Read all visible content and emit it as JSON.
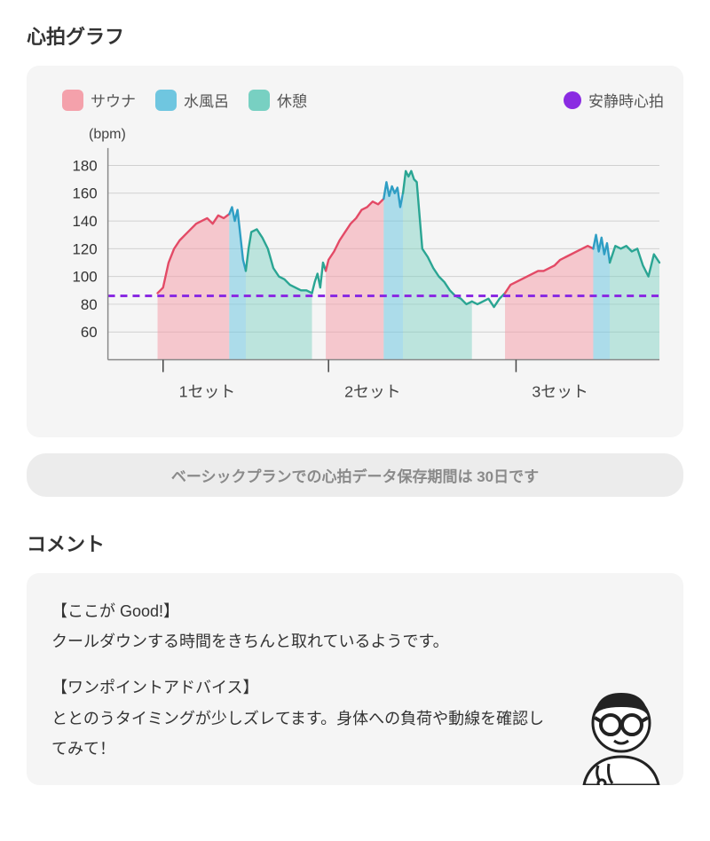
{
  "heartRate": {
    "title": "心拍グラフ",
    "legend": {
      "sauna": {
        "label": "サウナ",
        "color": "#f4a1ab"
      },
      "cold": {
        "label": "水風呂",
        "color": "#6fc6e0"
      },
      "rest": {
        "label": "休憩",
        "color": "#78d0c2"
      },
      "resting": {
        "label": "安静時心拍",
        "color": "#8a2be2"
      }
    },
    "chart": {
      "type": "line-area",
      "yAxis": {
        "label": "(bpm)",
        "min": 40,
        "max": 190,
        "ticks": [
          60,
          80,
          100,
          120,
          140,
          160,
          180
        ],
        "gridColor": "#d0d0d0",
        "labelFontSize": 17
      },
      "xAxis": {
        "min": 0,
        "max": 100,
        "setLabels": [
          "1セット",
          "2セット",
          "3セット"
        ],
        "setTickPositions": [
          10,
          40,
          74
        ],
        "labelFontSize": 18
      },
      "restingHr": 86,
      "restingLine": {
        "color": "#8a2be2",
        "dash": "8 6",
        "width": 3
      },
      "background": "#f5f5f5",
      "lineWidth": 2.4,
      "segments": [
        {
          "kind": "sauna",
          "color": "#e34a66",
          "fill": "#f4a1ab",
          "fillOpacity": 0.55,
          "points": [
            [
              9,
              88
            ],
            [
              10,
              92
            ],
            [
              11,
              110
            ],
            [
              12,
              120
            ],
            [
              13,
              126
            ],
            [
              14,
              130
            ],
            [
              15,
              134
            ],
            [
              16,
              138
            ],
            [
              17,
              140
            ],
            [
              18,
              142
            ],
            [
              19,
              138
            ],
            [
              20,
              144
            ],
            [
              21,
              142
            ],
            [
              22,
              145
            ]
          ]
        },
        {
          "kind": "cold",
          "color": "#2e9ec4",
          "fill": "#6fc6e0",
          "fillOpacity": 0.55,
          "points": [
            [
              22,
              145
            ],
            [
              22.5,
              150
            ],
            [
              23,
              140
            ],
            [
              23.5,
              148
            ],
            [
              24,
              130
            ],
            [
              24.5,
              112
            ],
            [
              25,
              104
            ]
          ]
        },
        {
          "kind": "rest",
          "color": "#2aa593",
          "fill": "#78d0c2",
          "fillOpacity": 0.45,
          "points": [
            [
              25,
              104
            ],
            [
              25.5,
              120
            ],
            [
              26,
              132
            ],
            [
              27,
              134
            ],
            [
              28,
              128
            ],
            [
              29,
              120
            ],
            [
              30,
              106
            ],
            [
              31,
              100
            ],
            [
              32,
              98
            ],
            [
              33,
              94
            ],
            [
              34,
              92
            ],
            [
              35,
              90
            ],
            [
              36,
              90
            ],
            [
              37,
              88
            ]
          ]
        },
        {
          "kind": "none",
          "color": "#2aa593",
          "fill": "none",
          "fillOpacity": 0,
          "points": [
            [
              37,
              88
            ],
            [
              37.5,
              96
            ],
            [
              38,
              102
            ],
            [
              38.5,
              92
            ],
            [
              39,
              110
            ],
            [
              39.5,
              104
            ]
          ]
        },
        {
          "kind": "sauna",
          "color": "#e34a66",
          "fill": "#f4a1ab",
          "fillOpacity": 0.55,
          "points": [
            [
              39.5,
              104
            ],
            [
              40,
              112
            ],
            [
              41,
              118
            ],
            [
              42,
              126
            ],
            [
              43,
              132
            ],
            [
              44,
              138
            ],
            [
              45,
              142
            ],
            [
              46,
              148
            ],
            [
              47,
              150
            ],
            [
              48,
              154
            ],
            [
              49,
              152
            ],
            [
              50,
              156
            ]
          ]
        },
        {
          "kind": "cold",
          "color": "#2e9ec4",
          "fill": "#6fc6e0",
          "fillOpacity": 0.55,
          "points": [
            [
              50,
              156
            ],
            [
              50.5,
              168
            ],
            [
              51,
              158
            ],
            [
              51.5,
              165
            ],
            [
              52,
              160
            ],
            [
              52.5,
              164
            ],
            [
              53,
              150
            ],
            [
              53.5,
              160
            ]
          ]
        },
        {
          "kind": "rest",
          "color": "#2aa593",
          "fill": "#78d0c2",
          "fillOpacity": 0.45,
          "points": [
            [
              53.5,
              160
            ],
            [
              54,
              176
            ],
            [
              54.5,
              172
            ],
            [
              55,
              176
            ],
            [
              55.5,
              170
            ],
            [
              56,
              168
            ],
            [
              57,
              120
            ],
            [
              58,
              114
            ],
            [
              59,
              106
            ],
            [
              60,
              100
            ],
            [
              61,
              96
            ],
            [
              62,
              90
            ],
            [
              63,
              86
            ],
            [
              64,
              84
            ],
            [
              65,
              80
            ],
            [
              66,
              82
            ]
          ]
        },
        {
          "kind": "none",
          "color": "#2aa593",
          "fill": "none",
          "fillOpacity": 0,
          "points": [
            [
              66,
              82
            ],
            [
              67,
              80
            ],
            [
              68,
              82
            ],
            [
              69,
              84
            ],
            [
              70,
              78
            ],
            [
              71,
              84
            ],
            [
              72,
              88
            ]
          ]
        },
        {
          "kind": "sauna",
          "color": "#e34a66",
          "fill": "#f4a1ab",
          "fillOpacity": 0.55,
          "points": [
            [
              72,
              88
            ],
            [
              73,
              94
            ],
            [
              74,
              96
            ],
            [
              75,
              98
            ],
            [
              76,
              100
            ],
            [
              77,
              102
            ],
            [
              78,
              104
            ],
            [
              79,
              104
            ],
            [
              80,
              106
            ],
            [
              81,
              108
            ],
            [
              82,
              112
            ],
            [
              83,
              114
            ],
            [
              84,
              116
            ],
            [
              85,
              118
            ],
            [
              86,
              120
            ],
            [
              87,
              122
            ],
            [
              88,
              120
            ]
          ]
        },
        {
          "kind": "cold",
          "color": "#2e9ec4",
          "fill": "#6fc6e0",
          "fillOpacity": 0.55,
          "points": [
            [
              88,
              120
            ],
            [
              88.5,
              130
            ],
            [
              89,
              118
            ],
            [
              89.5,
              128
            ],
            [
              90,
              116
            ],
            [
              90.5,
              124
            ],
            [
              91,
              110
            ]
          ]
        },
        {
          "kind": "rest",
          "color": "#2aa593",
          "fill": "#78d0c2",
          "fillOpacity": 0.45,
          "points": [
            [
              91,
              110
            ],
            [
              92,
              122
            ],
            [
              93,
              120
            ],
            [
              94,
              122
            ],
            [
              95,
              118
            ],
            [
              96,
              120
            ],
            [
              97,
              108
            ],
            [
              98,
              100
            ],
            [
              99,
              116
            ],
            [
              100,
              110
            ]
          ]
        }
      ]
    },
    "notice": "ベーシックプランでの心拍データ保存期間は 30日です"
  },
  "comment": {
    "title": "コメント",
    "goodHeading": "【ここが Good!】",
    "goodBody": "クールダウンする時間をきちんと取れているようです。",
    "adviceHeading": "【ワンポイントアドバイス】",
    "adviceBody": "ととのうタイミングが少しズレてます。身体への負荷や動線を確認してみて！"
  },
  "colors": {
    "cardBg": "#f5f5f5",
    "noticeBg": "#ececec",
    "noticeText": "#8a8a8a",
    "text": "#333333"
  }
}
